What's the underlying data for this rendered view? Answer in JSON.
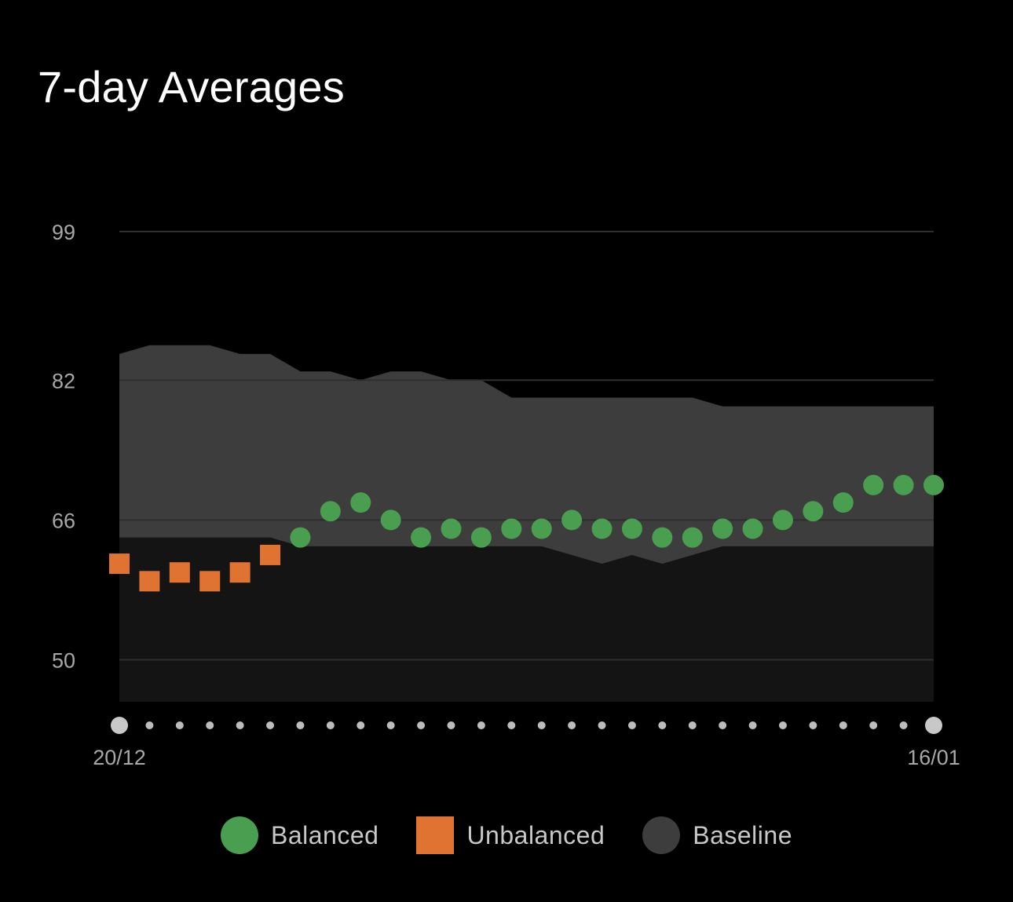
{
  "title": "7-day Averages",
  "colors": {
    "background": "#000000",
    "balanced": "#4a9e4f",
    "unbalanced": "#e07232",
    "baseline": "#3d3d3d",
    "plot_bg": "#141414",
    "grid": "#2e2e2e",
    "axis_text": "#a8a8a8",
    "dot_minor": "#bdbdbd",
    "dot_major": "#c8c8c8"
  },
  "legend": [
    {
      "label": "Balanced",
      "color": "#4a9e4f",
      "shape": "circle"
    },
    {
      "label": "Unbalanced",
      "color": "#e07232",
      "shape": "square"
    },
    {
      "label": "Baseline",
      "color": "#3d3d3d",
      "shape": "circle"
    }
  ],
  "chart_data": {
    "type": "scatter",
    "title": "7-day Averages",
    "xlabel": "",
    "ylabel": "",
    "x_tick_labels": [
      "20/12",
      "16/01"
    ],
    "y_ticks": [
      50,
      66,
      82,
      99
    ],
    "ylim": [
      45.2,
      99
    ],
    "grid": true,
    "legend_position": "bottom",
    "num_days": 28,
    "series": [
      {
        "name": "Balanced",
        "type": "scatter",
        "marker": "circle",
        "x": [
          6,
          7,
          8,
          9,
          10,
          11,
          12,
          13,
          14,
          15,
          16,
          17,
          18,
          19,
          20,
          21,
          22,
          23,
          24,
          25,
          26,
          27
        ],
        "values": [
          64,
          67,
          68,
          66,
          64,
          65,
          64,
          65,
          65,
          66,
          65,
          65,
          64,
          64,
          65,
          65,
          66,
          67,
          68,
          70,
          70,
          70
        ]
      },
      {
        "name": "Unbalanced",
        "type": "scatter",
        "marker": "square",
        "x": [
          0,
          1,
          2,
          3,
          4,
          5
        ],
        "values": [
          61,
          59,
          60,
          59,
          60,
          62
        ]
      },
      {
        "name": "Baseline",
        "type": "area",
        "upper": [
          85,
          86,
          86,
          86,
          85,
          85,
          83,
          83,
          82,
          83,
          83,
          82,
          82,
          80,
          80,
          80,
          80,
          80,
          80,
          80,
          79,
          79,
          79,
          79,
          79,
          79,
          79,
          79
        ],
        "lower": [
          64,
          64,
          64,
          64,
          64,
          64,
          63,
          63,
          63,
          63,
          63,
          63,
          63,
          63,
          63,
          62,
          61,
          62,
          61,
          62,
          63,
          63,
          63,
          63,
          63,
          63,
          63,
          63
        ]
      }
    ]
  }
}
